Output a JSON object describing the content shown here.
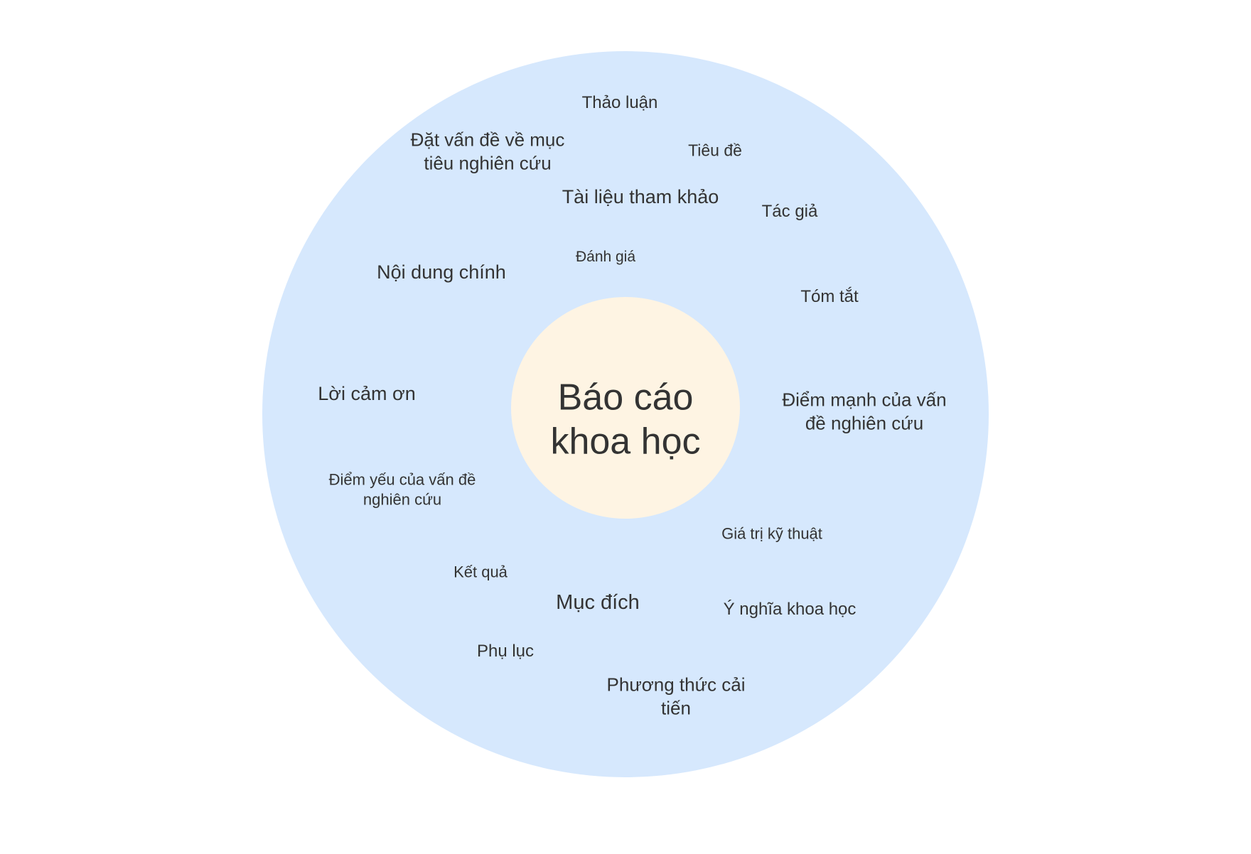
{
  "diagram": {
    "center_label": "Báo cáo khoa học",
    "items": [
      "Thảo luận",
      "Đặt vấn đề về mục tiêu nghiên cứu",
      "Tiêu đề",
      "Tài liệu tham khảo",
      "Tác giả",
      "Đánh giá",
      "Nội dung chính",
      "Tóm tắt",
      "Lời cảm ơn",
      "Điểm mạnh của vấn đề nghiên cứu",
      "Điểm yếu của vấn đề nghiên cứu",
      "Giá trị kỹ thuật",
      "Kết quả",
      "Mục đích",
      "Ý nghĩa khoa học",
      "Phụ lục",
      "Phương thức cải tiến"
    ]
  },
  "colors": {
    "outer_ring": "#d6e8fd",
    "center": "#fef4e3",
    "text": "#333333"
  }
}
